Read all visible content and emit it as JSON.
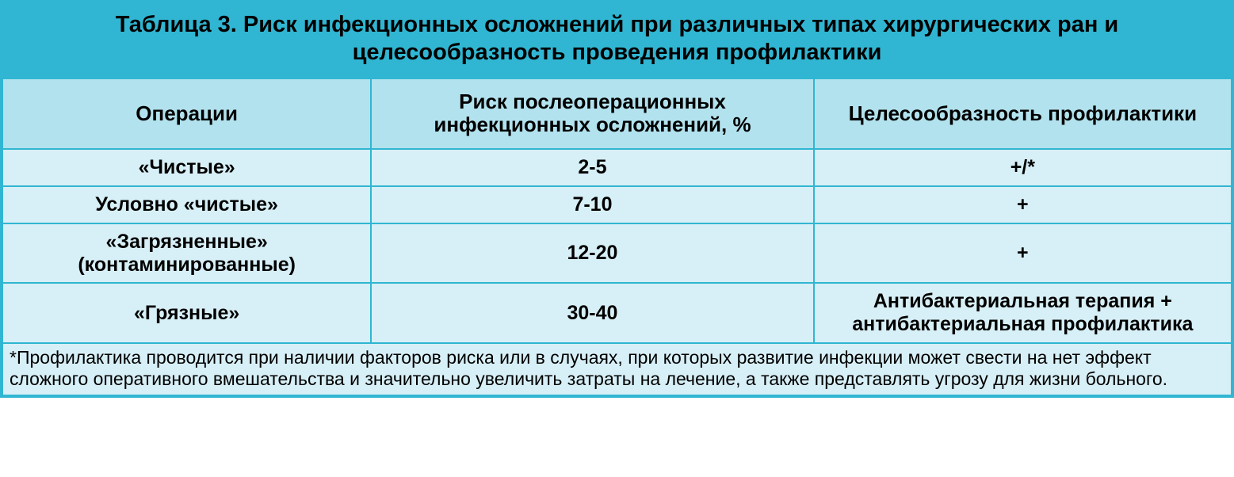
{
  "colors": {
    "border": "#30b6d2",
    "title_bg": "#30b6d2",
    "header_bg": "#b2e2ee",
    "body_bg": "#d7eff6"
  },
  "layout": {
    "col_widths_pct": [
      30,
      36,
      34
    ]
  },
  "table": {
    "title": "Таблица 3. Риск инфекционных осложнений при различных типах хирургических ран и целесообразность проведения профилактики",
    "columns": [
      "Операции",
      "Риск послеоперационных инфекционных осложнений, %",
      "Целесообразность профилактики"
    ],
    "rows": [
      {
        "op": "«Чистые»",
        "risk": "2-5",
        "advis": "+/*"
      },
      {
        "op": "Условно «чистые»",
        "risk": "7-10",
        "advis": "+"
      },
      {
        "op": "«Загрязненные» (контаминированные)",
        "risk": "12-20",
        "advis": "+"
      },
      {
        "op": "«Грязные»",
        "risk": "30-40",
        "advis": "Антибактериальная терапия + антибактериальная профилактика"
      }
    ],
    "footnote": "*Профилактика проводится при наличии факторов риска или в случаях, при которых развитие инфекции может свести на нет эффект сложного оперативного вмешательства и значительно увеличить затраты на лечение, а также представлять угрозу для жизни больного."
  }
}
